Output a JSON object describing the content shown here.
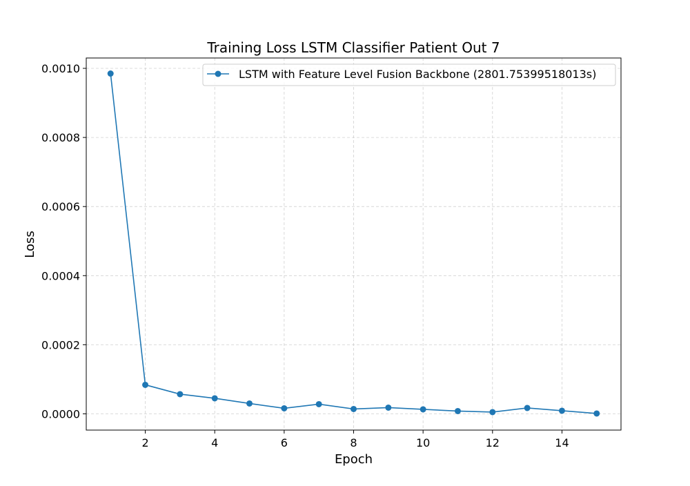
{
  "chart_data": {
    "type": "line",
    "title": "Training Loss LSTM Classifier Patient Out 7",
    "xlabel": "Epoch",
    "ylabel": "Loss",
    "xlim": [
      0.3,
      15.7
    ],
    "ylim": [
      -4.7e-05,
      0.00103
    ],
    "xticks": [
      2,
      4,
      6,
      8,
      10,
      12,
      14
    ],
    "xtick_labels": [
      "2",
      "4",
      "6",
      "8",
      "10",
      "12",
      "14"
    ],
    "yticks": [
      0,
      0.0002,
      0.0004,
      0.0006,
      0.0008,
      0.001
    ],
    "ytick_labels": [
      "0.0000",
      "0.0002",
      "0.0004",
      "0.0006",
      "0.0008",
      "0.0010"
    ],
    "grid": true,
    "legend_position": "top-right",
    "x": [
      1,
      2,
      3,
      4,
      5,
      6,
      7,
      8,
      9,
      10,
      11,
      12,
      13,
      14,
      15
    ],
    "series": [
      {
        "name": "LSTM with Feature Level Fusion Backbone (2801.75399518013s)",
        "color": "#1f77b4",
        "marker": "circle",
        "values": [
          0.000985,
          8.4e-05,
          5.7e-05,
          4.5e-05,
          3e-05,
          1.6e-05,
          2.8e-05,
          1.4e-05,
          1.8e-05,
          1.3e-05,
          8e-06,
          5e-06,
          1.7e-05,
          9e-06,
          1e-06
        ]
      }
    ]
  }
}
